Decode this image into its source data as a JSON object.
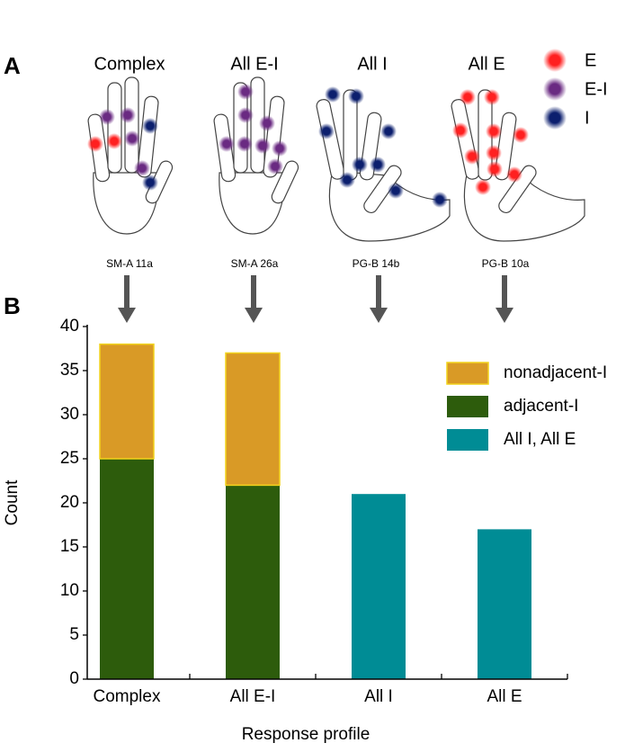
{
  "panel_a": {
    "label": "A",
    "titles": [
      "Complex",
      "All E-I",
      "All I",
      "All E"
    ],
    "subjects": [
      "SM-A 11a",
      "SM-A 26a",
      "PG-B 14b",
      "PG-B 10a"
    ],
    "legend": [
      "E",
      "E-I",
      "I"
    ]
  },
  "panel_b_label": "B",
  "chart_data": {
    "type": "stacked_bar",
    "xlabel": "Response profile",
    "ylabel": "Count",
    "categories": [
      "Complex",
      "All E-I",
      "All I",
      "All E"
    ],
    "series": [
      {
        "name": "nonadjacent-I",
        "color": "#d99a26",
        "edgecolor": "#f2d31b",
        "values": [
          13,
          15,
          null,
          null
        ]
      },
      {
        "name": "adjacent-I",
        "color": "#2d5c0c",
        "values": [
          25,
          22,
          null,
          null
        ]
      },
      {
        "name": "All I, All E",
        "color": "#008c95",
        "values": [
          null,
          null,
          21,
          17
        ]
      }
    ],
    "ylim": [
      0,
      40
    ],
    "yticks": [
      0,
      5,
      10,
      15,
      20,
      25,
      30,
      35,
      40
    ]
  }
}
